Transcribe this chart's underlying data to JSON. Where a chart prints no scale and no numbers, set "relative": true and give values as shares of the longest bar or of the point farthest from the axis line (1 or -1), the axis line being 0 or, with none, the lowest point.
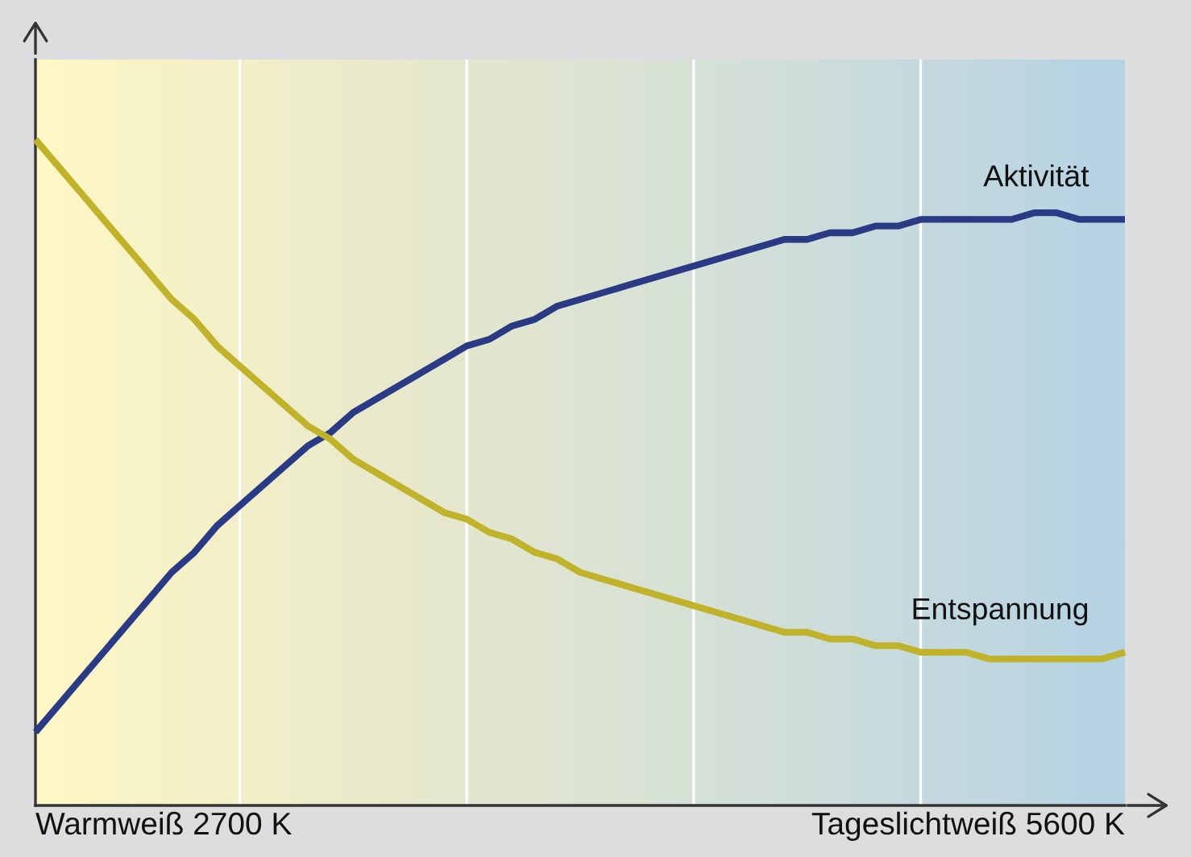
{
  "chart_data": {
    "type": "line",
    "relative": true,
    "grid": "x",
    "legend": false,
    "categories": [
      null,
      null,
      null,
      null,
      null,
      null,
      null,
      null,
      null,
      null,
      null,
      null,
      null,
      null,
      null,
      null,
      null,
      null,
      null,
      null,
      null,
      null,
      null,
      null,
      null,
      null,
      null,
      null,
      null,
      null,
      null,
      null,
      null,
      null,
      null,
      null,
      null,
      null,
      null,
      null,
      null,
      null,
      null,
      null,
      null,
      null,
      null,
      null,
      null
    ],
    "series": [
      {
        "name": "Aktivität",
        "color": "#2b3a85",
        "values": [
          0.11,
          0.15,
          0.19,
          0.23,
          0.27,
          0.31,
          0.35,
          0.38,
          0.42,
          0.45,
          0.48,
          0.51,
          0.54,
          0.56,
          0.59,
          0.61,
          0.63,
          0.65,
          0.67,
          0.69,
          0.7,
          0.72,
          0.73,
          0.75,
          0.76,
          0.77,
          0.78,
          0.79,
          0.8,
          0.81,
          0.82,
          0.83,
          0.84,
          0.85,
          0.85,
          0.86,
          0.86,
          0.87,
          0.87,
          0.88,
          0.88,
          0.88,
          0.88,
          0.88,
          0.89,
          0.89,
          0.88,
          0.88,
          0.88
        ]
      },
      {
        "name": "Entspannung",
        "color": "#c0b22a",
        "values": [
          1.0,
          0.96,
          0.92,
          0.88,
          0.84,
          0.8,
          0.76,
          0.73,
          0.69,
          0.66,
          0.63,
          0.6,
          0.57,
          0.55,
          0.52,
          0.5,
          0.48,
          0.46,
          0.44,
          0.43,
          0.41,
          0.4,
          0.38,
          0.37,
          0.35,
          0.34,
          0.33,
          0.32,
          0.31,
          0.3,
          0.29,
          0.28,
          0.27,
          0.26,
          0.26,
          0.25,
          0.25,
          0.24,
          0.24,
          0.23,
          0.23,
          0.23,
          0.22,
          0.22,
          0.22,
          0.22,
          0.22,
          0.22,
          0.23
        ]
      }
    ],
    "annotations": [
      "Warmweiß 2700 K",
      "Tageslichtweiß 5600 K"
    ]
  }
}
